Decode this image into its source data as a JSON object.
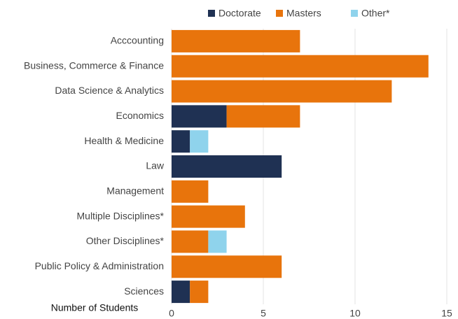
{
  "chart_data": {
    "type": "stacked_barh",
    "xlabel": "Number of Students",
    "categories": [
      "Acccounting",
      "Business, Commerce & Finance",
      "Data Science & Analytics",
      "Economics",
      "Health & Medicine",
      "Law",
      "Management",
      "Multiple Disciplines*",
      "Other Disciplines*",
      "Public Policy & Administration",
      "Sciences"
    ],
    "series": [
      {
        "name": "Doctorate",
        "color": "#1f3153",
        "values": [
          0,
          0,
          0,
          3,
          1,
          6,
          0,
          0,
          0,
          0,
          1
        ]
      },
      {
        "name": "Masters",
        "color": "#e8740c",
        "values": [
          7,
          14,
          12,
          4,
          0,
          0,
          2,
          4,
          2,
          6,
          1
        ]
      },
      {
        "name": "Other*",
        "color": "#8fd3ec",
        "values": [
          0,
          0,
          0,
          0,
          1,
          0,
          0,
          0,
          1,
          0,
          0
        ]
      }
    ],
    "xlim": [
      0,
      15
    ],
    "xticks": [
      0,
      5,
      10,
      15
    ],
    "grid": true,
    "legend": "top"
  }
}
